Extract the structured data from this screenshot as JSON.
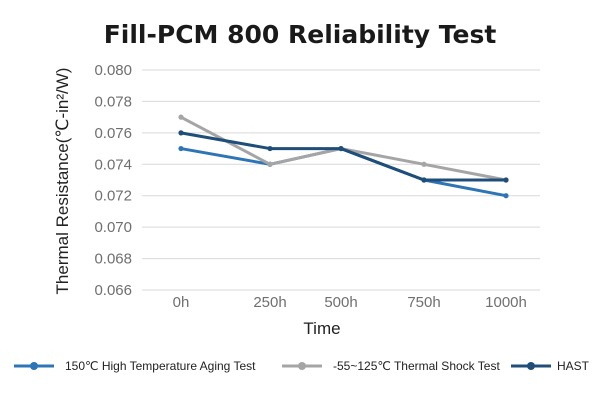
{
  "chart_data": {
    "type": "line",
    "title": "Fill-PCM 800 Reliability Test",
    "xlabel": "Time",
    "ylabel": "Thermal Resistance(℃-in²/W)",
    "categories": [
      "0h",
      "250h",
      "500h",
      "750h",
      "1000h"
    ],
    "ylim": [
      0.066,
      0.08
    ],
    "yticks": [
      "0.066",
      "0.068",
      "0.070",
      "0.072",
      "0.074",
      "0.076",
      "0.078",
      "0.080"
    ],
    "ytick_values": [
      0.066,
      0.068,
      0.07,
      0.072,
      0.074,
      0.076,
      0.078,
      0.08
    ],
    "grid": true,
    "legend_position": "bottom",
    "series": [
      {
        "name": "150℃ High Temperature Aging Test",
        "color": "#2e75b6",
        "values": [
          0.075,
          0.074,
          0.075,
          0.073,
          0.072
        ]
      },
      {
        "name": "-55~125℃ Thermal Shock Test",
        "color": "#a5a5a5",
        "values": [
          0.077,
          0.074,
          0.075,
          0.074,
          0.073
        ]
      },
      {
        "name": "HAST",
        "color": "#1f4e79",
        "values": [
          0.076,
          0.075,
          0.075,
          0.073,
          0.073
        ]
      }
    ]
  }
}
